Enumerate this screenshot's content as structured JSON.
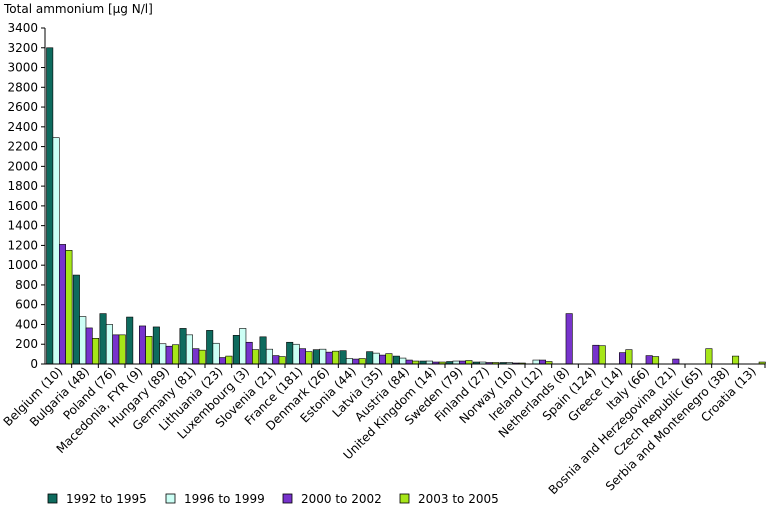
{
  "chart_data": {
    "type": "bar",
    "title": "",
    "ylabel": "Total ammonium [µg N/l]",
    "xlabel": "",
    "ylim": [
      0,
      3400
    ],
    "yticks": [
      0,
      200,
      400,
      600,
      800,
      1000,
      1200,
      1400,
      1600,
      1800,
      2000,
      2200,
      2400,
      2600,
      2800,
      3000,
      3200,
      3400
    ],
    "grid": false,
    "legend_position": "bottom",
    "categories": [
      "Belgium (10)",
      "Bulgaria (48)",
      "Poland (76)",
      "Macedonia, FYR (9)",
      "Hungary (89)",
      "Germany (81)",
      "Lithuania (23)",
      "Luxembourg (3)",
      "Slovenia (21)",
      "France (181)",
      "Denmark (26)",
      "Estonia (44)",
      "Latvia (35)",
      "Austria (84)",
      "United Kingdom (14)",
      "Sweden (79)",
      "Finland (27)",
      "Norway (10)",
      "Ireland (12)",
      "Netherlands (8)",
      "Spain (124)",
      "Greece (14)",
      "Italy (66)",
      "Bosnia and Herzegovina (21)",
      "Czech Republic (65)",
      "Serbia and Montenegro (38)",
      "Croatia (13)"
    ],
    "series": [
      {
        "name": "1992 to 1995",
        "color": "#0e6b5e",
        "values": [
          3200,
          900,
          510,
          475,
          375,
          360,
          340,
          290,
          275,
          220,
          145,
          135,
          125,
          80,
          30,
          25,
          20,
          15,
          null,
          null,
          null,
          null,
          null,
          null,
          null,
          null,
          null
        ]
      },
      {
        "name": "1996 to 1999",
        "color": "#ccfff5",
        "values": [
          2290,
          480,
          400,
          null,
          205,
          295,
          210,
          360,
          150,
          200,
          150,
          55,
          110,
          60,
          30,
          30,
          20,
          15,
          40,
          null,
          null,
          null,
          null,
          null,
          null,
          null,
          null
        ]
      },
      {
        "name": "2000 to 2002",
        "color": "#7733cc",
        "values": [
          1210,
          365,
          295,
          385,
          180,
          155,
          65,
          220,
          85,
          155,
          120,
          50,
          90,
          40,
          20,
          30,
          15,
          10,
          40,
          510,
          190,
          115,
          85,
          50,
          null,
          null,
          null
        ]
      },
      {
        "name": "2003 to 2005",
        "color": "#a6e619",
        "values": [
          1150,
          260,
          295,
          280,
          195,
          140,
          80,
          145,
          75,
          125,
          130,
          55,
          105,
          30,
          20,
          35,
          15,
          10,
          25,
          null,
          185,
          145,
          75,
          null,
          155,
          80,
          20
        ]
      }
    ]
  }
}
